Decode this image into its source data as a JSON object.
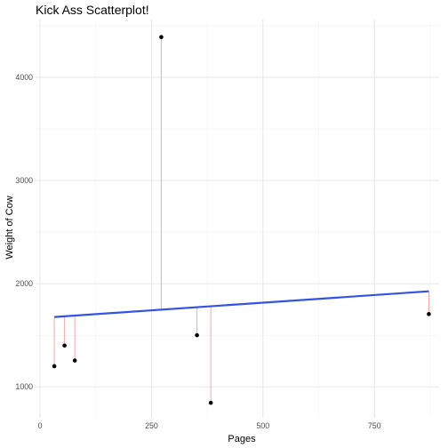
{
  "chart_data": {
    "type": "scatter",
    "title": "Kick Ass Scatterplot!",
    "xlabel": "Pages",
    "ylabel": "Weight of Cow",
    "xlim": [
      -10,
      895
    ],
    "ylim": [
      700,
      4560
    ],
    "x_ticks": [
      0,
      250,
      500,
      750
    ],
    "y_ticks": [
      1000,
      2000,
      3000,
      4000
    ],
    "grid": true,
    "legend": "none",
    "points": [
      {
        "x": 32,
        "y": 1200
      },
      {
        "x": 55,
        "y": 1400
      },
      {
        "x": 78,
        "y": 1255
      },
      {
        "x": 272,
        "y": 4390
      },
      {
        "x": 352,
        "y": 1500
      },
      {
        "x": 383,
        "y": 845
      },
      {
        "x": 872,
        "y": 1705
      }
    ],
    "regression_line": {
      "x": [
        32,
        872
      ],
      "y": [
        1677,
        1926
      ]
    },
    "colors": {
      "points": "#000000",
      "fit_line": "#3353e8",
      "residual_segments": "#f4a7a7",
      "major_grid": "#e6e6e6",
      "minor_grid": "#f2f2f2"
    }
  }
}
